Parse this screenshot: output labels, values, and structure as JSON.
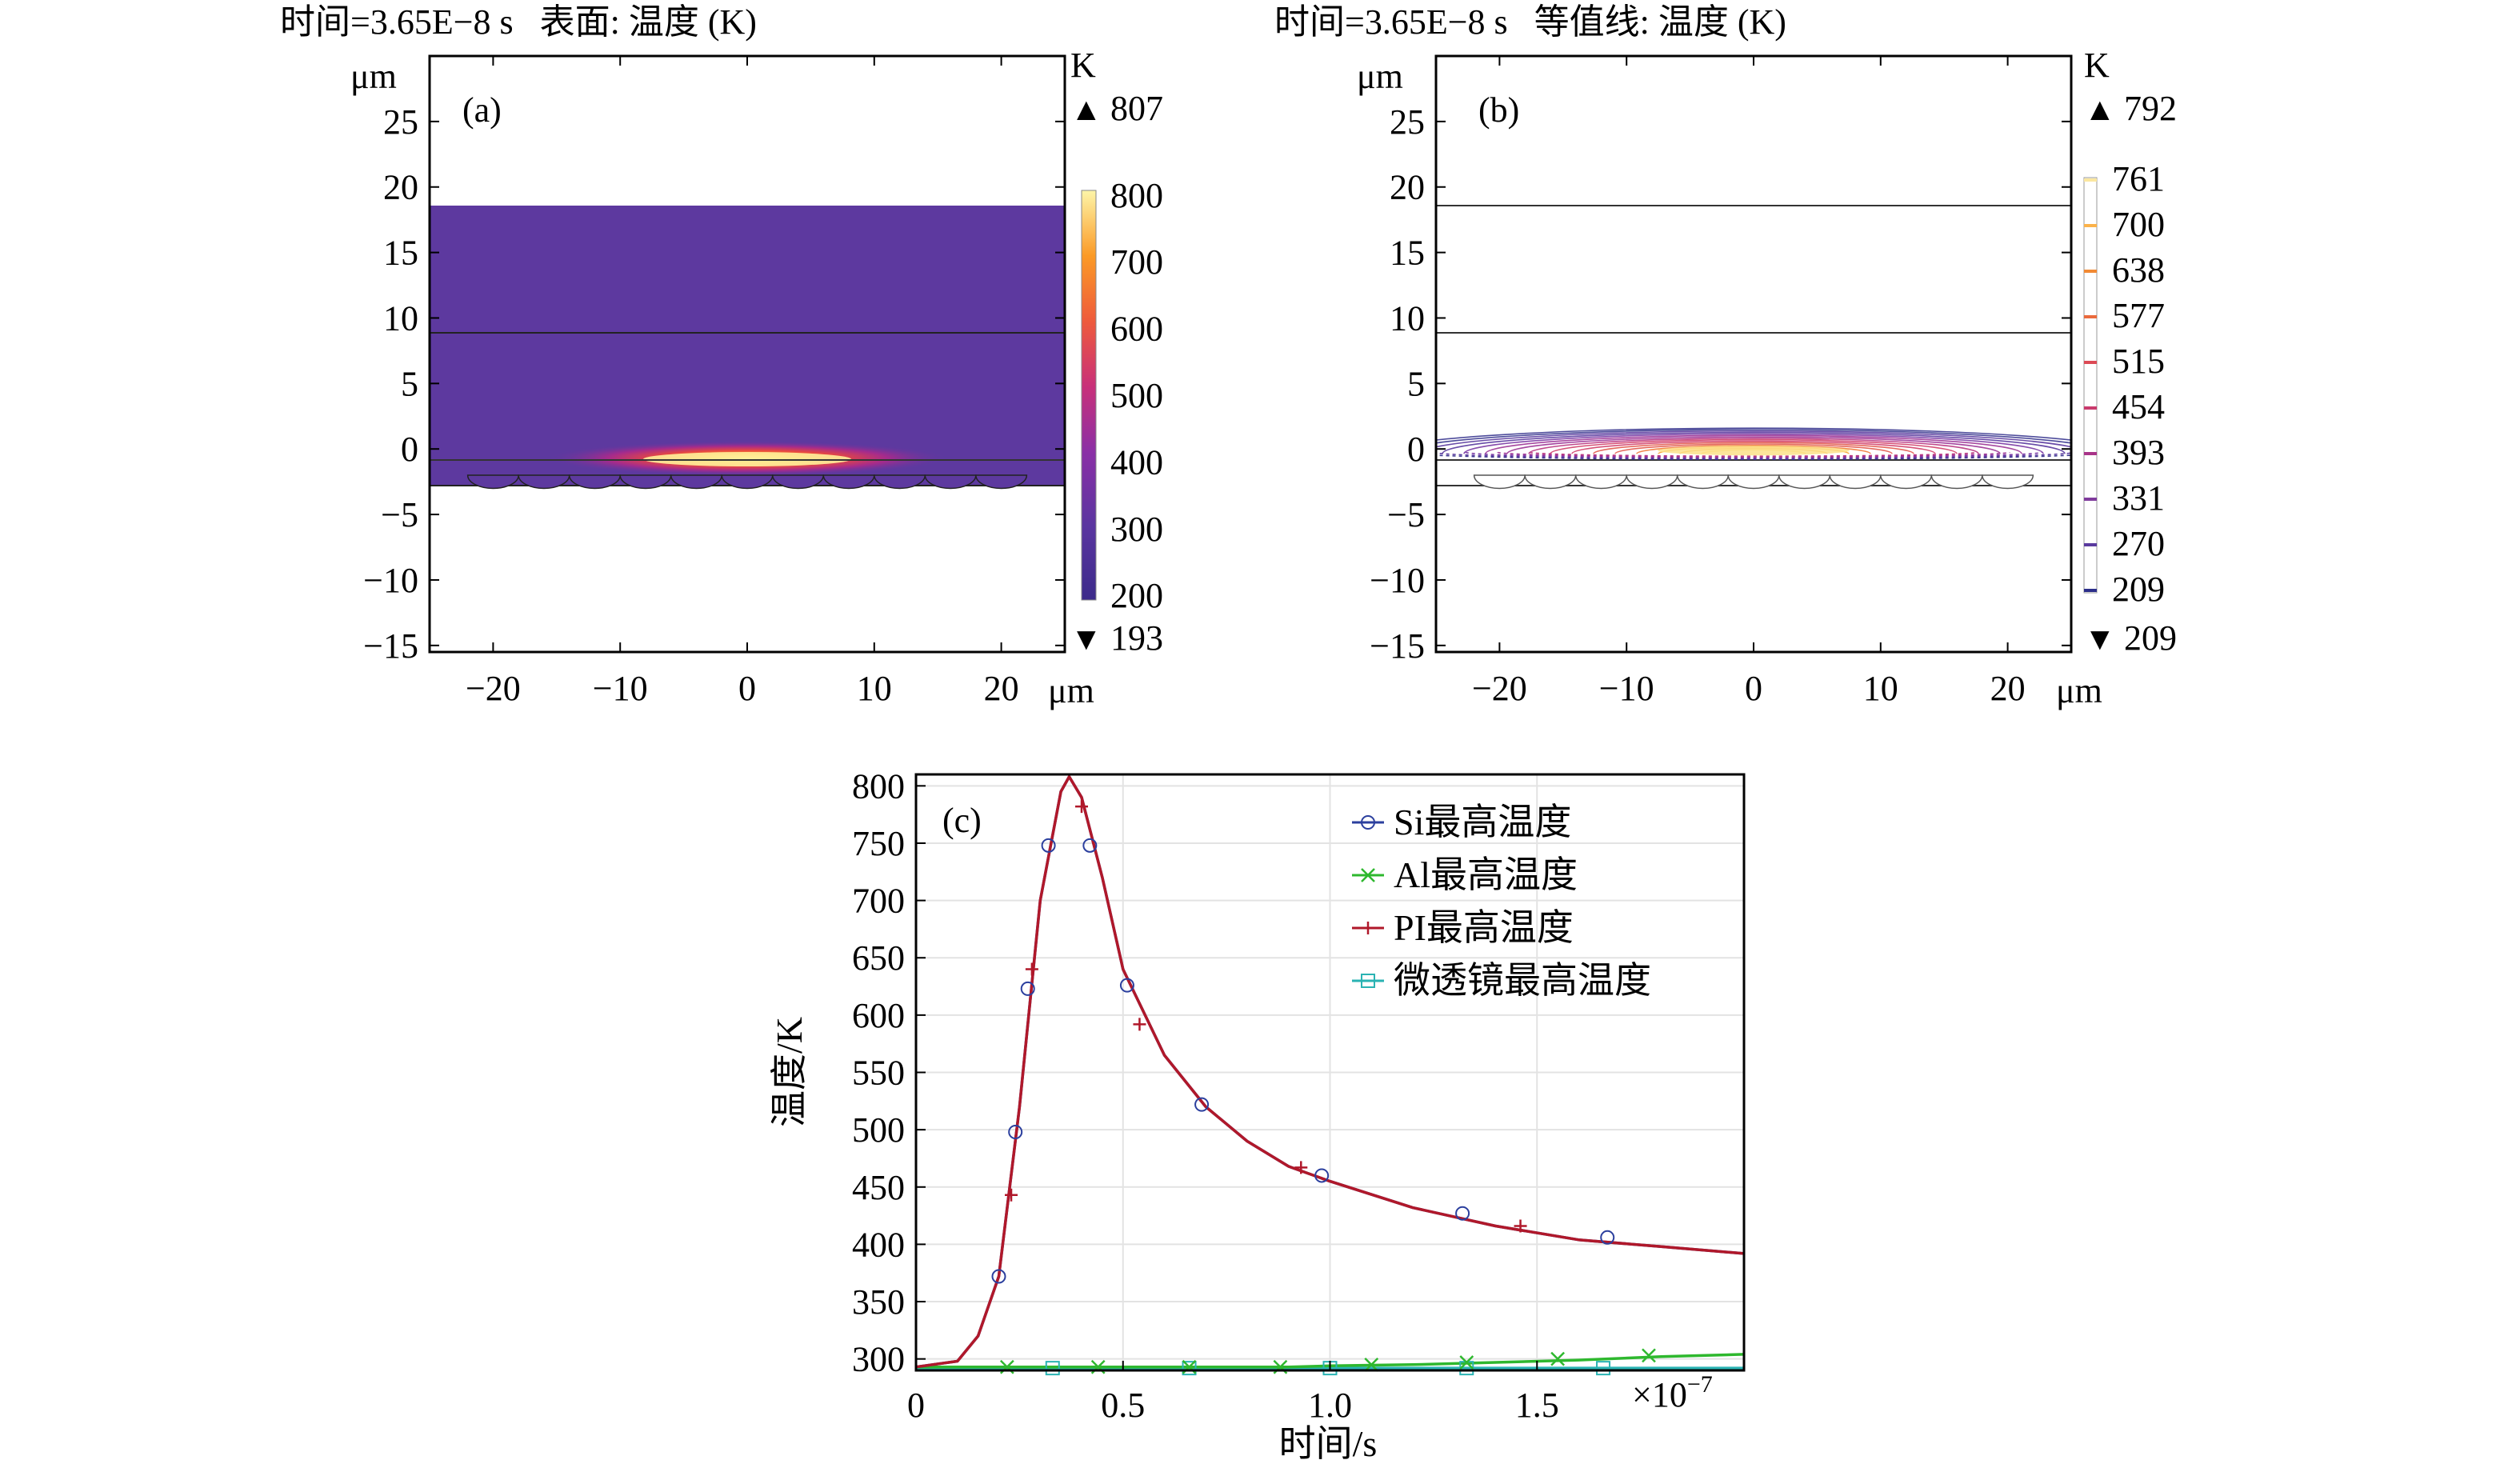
{
  "chart_data": [
    {
      "id": "a",
      "type": "heatmap",
      "panel_label": "(a)",
      "title": "时间=3.65E−8 s   表面: 温度 (K)",
      "x_unit": "μm",
      "y_unit": "μm",
      "x_ticks": [
        "−20",
        "−10",
        "0",
        "10",
        "20"
      ],
      "y_ticks": [
        "25",
        "20",
        "15",
        "10",
        "5",
        "0",
        "−5",
        "−10",
        "−15"
      ],
      "xlim": [
        -25,
        25
      ],
      "ylim": [
        -15.5,
        30
      ],
      "colorbar": {
        "unit": "K",
        "max_label": "807",
        "min_label": "193",
        "ticks": [
          "800",
          "700",
          "600",
          "500",
          "400",
          "300",
          "200"
        ],
        "max_marker": "▲",
        "min_marker": "▼"
      },
      "hot_spot": {
        "x": 0,
        "y": 0,
        "max": 807,
        "min": 193
      },
      "layers_y": [
        20,
        10,
        0,
        -2
      ],
      "microlens_count": 11
    },
    {
      "id": "b",
      "type": "contour",
      "panel_label": "(b)",
      "title": "时间=3.65E−8 s   等值线: 温度 (K)",
      "x_unit": "μm",
      "y_unit": "μm",
      "x_ticks": [
        "−20",
        "−10",
        "0",
        "10",
        "20"
      ],
      "y_ticks": [
        "25",
        "20",
        "15",
        "10",
        "5",
        "0",
        "−5",
        "−10",
        "−15"
      ],
      "xlim": [
        -25,
        25
      ],
      "ylim": [
        -15.5,
        30
      ],
      "colorbar": {
        "unit": "K",
        "max_label": "792",
        "min_label": "209",
        "levels": [
          "761",
          "700",
          "638",
          "577",
          "515",
          "454",
          "393",
          "331",
          "270",
          "209"
        ],
        "max_marker": "▲",
        "min_marker": "▼"
      },
      "layers_y": [
        20,
        10,
        0,
        -2
      ],
      "microlens_count": 11
    },
    {
      "id": "c",
      "type": "line",
      "panel_label": "(c)",
      "xlabel": "时间/s",
      "ylabel": "温度/K",
      "x_multiplier": "×10",
      "x_multiplier_exp": "−7",
      "x_ticks": [
        "0",
        "0.5",
        "1.0",
        "1.5"
      ],
      "y_ticks": [
        "300",
        "350",
        "400",
        "450",
        "500",
        "550",
        "600",
        "650",
        "700",
        "750",
        "800"
      ],
      "xlim": [
        0,
        2.0
      ],
      "ylim": [
        290,
        810
      ],
      "grid": true,
      "legend_position": "top-right",
      "x": [
        0,
        0.1,
        0.15,
        0.2,
        0.25,
        0.3,
        0.35,
        0.37,
        0.4,
        0.45,
        0.5,
        0.6,
        0.7,
        0.8,
        0.9,
        1.0,
        1.2,
        1.4,
        1.6,
        1.8,
        2.0
      ],
      "series": [
        {
          "name": "Si最高温度",
          "color": "#2b3f9e",
          "marker": "circle",
          "values": [
            293,
            298,
            320,
            372,
            520,
            700,
            795,
            808,
            790,
            720,
            640,
            565,
            520,
            490,
            468,
            455,
            432,
            416,
            404,
            398,
            392
          ],
          "marker_points": [
            [
              0.2,
              372
            ],
            [
              0.24,
              498
            ],
            [
              0.27,
              623
            ],
            [
              0.32,
              748
            ],
            [
              0.42,
              748
            ],
            [
              0.51,
              626
            ],
            [
              0.69,
              522
            ],
            [
              0.98,
              460
            ],
            [
              1.32,
              427
            ],
            [
              1.67,
              406
            ]
          ]
        },
        {
          "name": "Al最高温度",
          "color": "#2eb82e",
          "marker": "x",
          "values": [
            293,
            293,
            293,
            293,
            293,
            293,
            293,
            293,
            293,
            293,
            293,
            293,
            293,
            293,
            293,
            294,
            295,
            297,
            299,
            302,
            304
          ],
          "marker_points": [
            [
              0.22,
              293
            ],
            [
              0.44,
              293
            ],
            [
              0.66,
              293
            ],
            [
              0.88,
              293
            ],
            [
              1.1,
              295
            ],
            [
              1.33,
              297
            ],
            [
              1.55,
              300
            ],
            [
              1.77,
              303
            ]
          ]
        },
        {
          "name": "PI最高温度",
          "color": "#b0182a",
          "marker": "plus",
          "values": [
            293,
            298,
            320,
            372,
            520,
            700,
            795,
            808,
            790,
            720,
            640,
            565,
            520,
            490,
            468,
            455,
            432,
            416,
            404,
            398,
            392
          ],
          "marker_points": [
            [
              0.23,
              443
            ],
            [
              0.28,
              640
            ],
            [
              0.4,
              782
            ],
            [
              0.54,
              592
            ],
            [
              0.93,
              467
            ],
            [
              1.46,
              416
            ]
          ]
        },
        {
          "name": "微透镜最高温度",
          "color": "#2ab3b3",
          "marker": "square",
          "values": [
            292,
            292,
            292,
            292,
            292,
            292,
            292,
            292,
            292,
            292,
            292,
            292,
            292,
            292,
            292,
            292,
            292,
            292,
            292,
            292,
            292
          ],
          "marker_points": [
            [
              0.33,
              292
            ],
            [
              0.66,
              292
            ],
            [
              1.0,
              292
            ],
            [
              1.33,
              292
            ],
            [
              1.66,
              292
            ]
          ]
        }
      ]
    }
  ]
}
